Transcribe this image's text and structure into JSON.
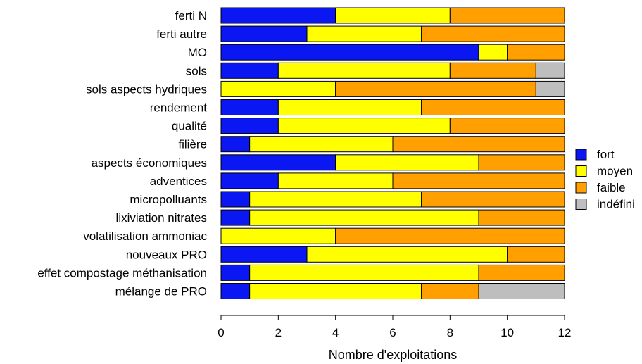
{
  "chart_data": {
    "type": "bar",
    "orientation": "horizontal",
    "stacked": true,
    "xlabel": "Nombre d'exploitations",
    "xlim": [
      0,
      12
    ],
    "xticks": [
      "0",
      "2",
      "4",
      "6",
      "8",
      "10",
      "12"
    ],
    "legend_position": "right",
    "categories": [
      "ferti N",
      "ferti autre",
      "MO",
      "sols",
      "sols aspects hydriques",
      "rendement",
      "qualité",
      "filière",
      "aspects économiques",
      "adventices",
      "micropolluants",
      "lixiviation nitrates",
      "volatilisation ammoniac",
      "nouveaux PRO",
      "effet compostage méthanisation",
      "mélange de PRO"
    ],
    "series": [
      {
        "name": "fort",
        "color": "#0a17f2",
        "values": [
          4,
          3,
          9,
          2,
          0,
          2,
          2,
          1,
          4,
          2,
          1,
          1,
          0,
          3,
          1,
          1
        ]
      },
      {
        "name": "moyen",
        "color": "#ffff00",
        "values": [
          4,
          4,
          1,
          6,
          4,
          5,
          6,
          5,
          5,
          4,
          6,
          8,
          4,
          7,
          8,
          6
        ]
      },
      {
        "name": "faible",
        "color": "#ff9f00",
        "values": [
          4,
          5,
          2,
          3,
          7,
          5,
          4,
          6,
          3,
          6,
          5,
          3,
          8,
          2,
          3,
          2
        ]
      },
      {
        "name": "indéfini",
        "color": "#bebebe",
        "values": [
          0,
          0,
          0,
          1,
          1,
          0,
          0,
          0,
          0,
          0,
          0,
          0,
          0,
          0,
          0,
          3
        ]
      }
    ]
  }
}
